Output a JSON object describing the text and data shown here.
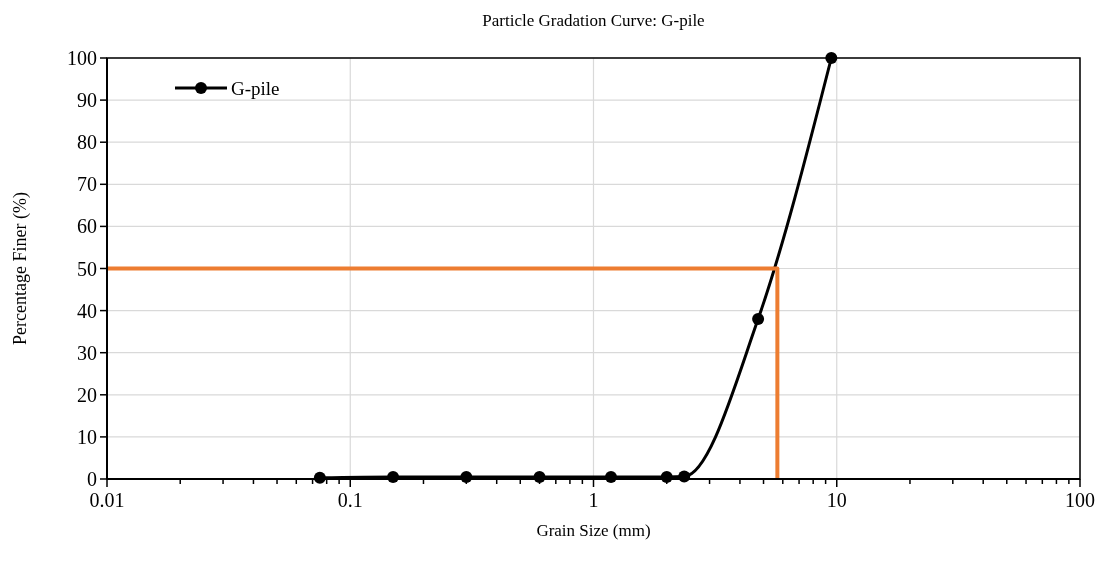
{
  "chart_data": {
    "type": "line",
    "title": "Particle Gradation Curve: G-pile",
    "xlabel": "Grain Size (mm)",
    "ylabel": "Percentage Finer (%)",
    "log": "x",
    "xlim": [
      0.01,
      100
    ],
    "ylim": [
      0,
      100
    ],
    "xticks": [
      0.01,
      {
        "value": 0.02,
        "label": null
      },
      {
        "value": 0.03,
        "label": null
      },
      {
        "value": 0.04,
        "label": null
      },
      {
        "value": 0.05,
        "label": null
      },
      {
        "value": 0.06,
        "label": null
      },
      {
        "value": 0.07,
        "label": null
      },
      {
        "value": 0.08,
        "label": null
      },
      {
        "value": 0.09,
        "label": null
      },
      0.1,
      {
        "value": 0.2,
        "label": null
      },
      {
        "value": 0.3,
        "label": null
      },
      {
        "value": 0.4,
        "label": null
      },
      {
        "value": 0.5,
        "label": null
      },
      {
        "value": 0.6,
        "label": null
      },
      {
        "value": 0.7,
        "label": null
      },
      {
        "value": 0.8,
        "label": null
      },
      {
        "value": 0.9,
        "label": null
      },
      1,
      {
        "value": 2,
        "label": null
      },
      {
        "value": 3,
        "label": null
      },
      {
        "value": 4,
        "label": null
      },
      {
        "value": 5,
        "label": null
      },
      {
        "value": 6,
        "label": null
      },
      {
        "value": 7,
        "label": null
      },
      {
        "value": 8,
        "label": null
      },
      {
        "value": 9,
        "label": null
      },
      10,
      {
        "value": 20,
        "label": null
      },
      {
        "value": 30,
        "label": null
      },
      {
        "value": 40,
        "label": null
      },
      {
        "value": 50,
        "label": null
      },
      {
        "value": 60,
        "label": null
      },
      {
        "value": 70,
        "label": null
      },
      {
        "value": 80,
        "label": null
      },
      {
        "value": 90,
        "label": null
      },
      100
    ],
    "yticks": [
      0,
      10,
      20,
      30,
      40,
      50,
      60,
      70,
      80,
      90,
      100
    ],
    "grid": true,
    "legend": "top left",
    "series": [
      {
        "name": "G-pile",
        "color": "#000000",
        "marker": "circle",
        "x": [
          0.075,
          0.15,
          0.3,
          0.6,
          1.18,
          2.0,
          2.36,
          4.75,
          9.5
        ],
        "values": [
          0.3,
          0.5,
          0.5,
          0.5,
          0.5,
          0.5,
          0.6,
          38,
          100
        ]
      },
      {
        "color": "#ed7d31",
        "marker": "none",
        "x": [
          0.01,
          5.7,
          5.7
        ],
        "values": [
          50,
          50,
          0
        ]
      }
    ]
  }
}
